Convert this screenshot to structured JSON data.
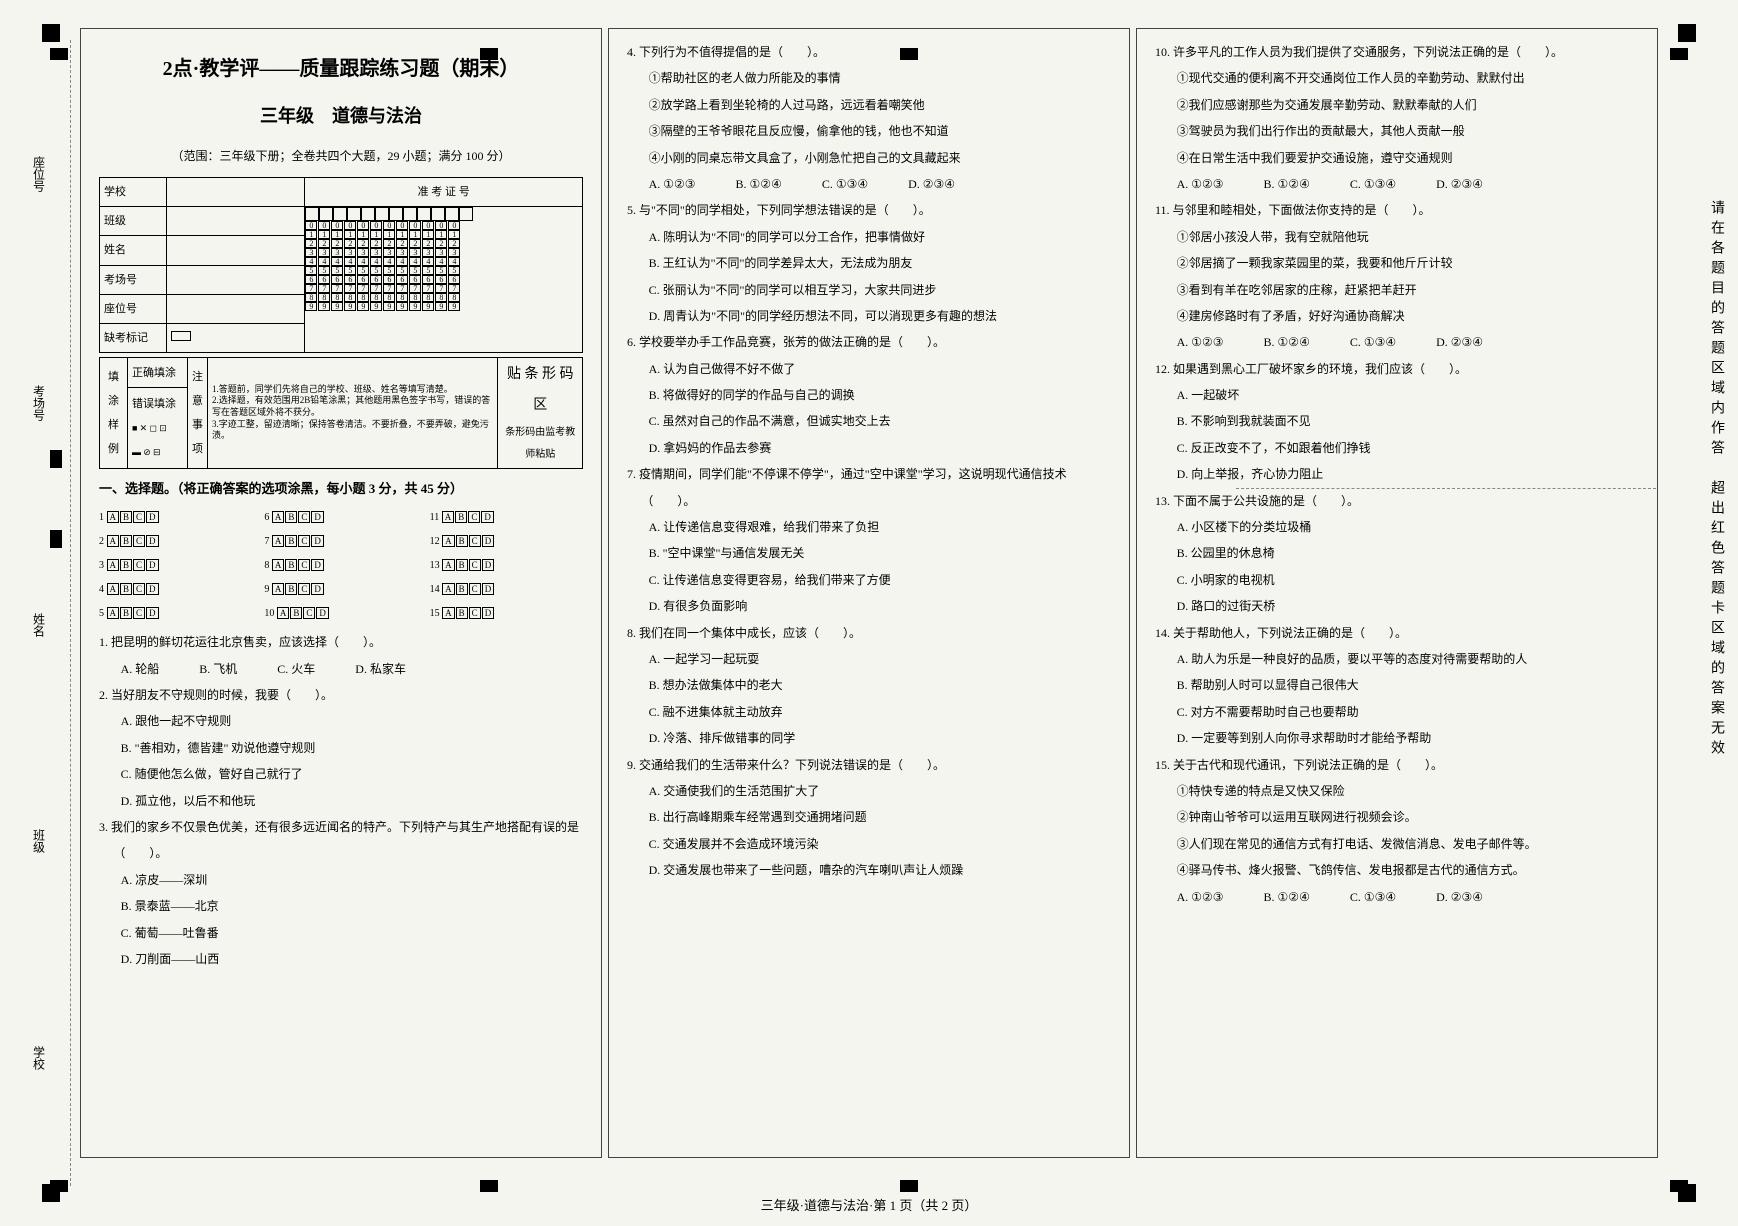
{
  "header": {
    "title": "2点·教学评——质量跟踪练习题（期末）",
    "subtitle": "三年级　道德与法治",
    "scope": "（范围：三年级下册；全卷共四个大题，29 小题；满分 100 分）"
  },
  "info_labels": {
    "school": "学校",
    "class": "班级",
    "name": "姓名",
    "room": "考场号",
    "seat": "座位号",
    "absent": "缺考标记",
    "exam_id_header": "准 考 证 号"
  },
  "fill_example": {
    "left_header": "填涂样例",
    "correct": "正确填涂",
    "wrong": "错误填涂",
    "notes_header": "注意事项",
    "note1": "1.答题前，同学们先将自己的学校、班级、姓名等填写清楚。",
    "note2": "2.选择题，有效范围用2B铅笔涂黑；其他题用黑色签字书写，错误的答写在答题区域外将不获分。",
    "note3": "3.字迹工整，留迹清晰；保持答卷清洁。不要折叠，不要弄破，避免污渍。",
    "barcode1": "贴 条 形 码 区",
    "barcode2": "条形码由监考教师粘贴"
  },
  "section1_title": "一、选择题。（将正确答案的选项涂黑，每小题 3 分，共 45 分）",
  "answer_grid": [
    [
      "1",
      "2",
      "3",
      "4",
      "5",
      "6",
      "7",
      "8",
      "9",
      "10",
      "11",
      "12",
      "13",
      "14",
      "15"
    ]
  ],
  "answer_opts": [
    "A",
    "B",
    "C",
    "D"
  ],
  "questions_col1": [
    {
      "num": "1.",
      "stem": "把昆明的鲜切花运往北京售卖，应该选择（　　）。",
      "opts": [
        "A. 轮船",
        "B. 飞机",
        "C. 火车",
        "D. 私家车"
      ],
      "inline": true
    },
    {
      "num": "2.",
      "stem": "当好朋友不守规则的时候，我要（　　）。",
      "opts": [
        "A. 跟他一起不守规则",
        "B. \"善相劝，德皆建\" 劝说他遵守规则",
        "C. 随便他怎么做，管好自己就行了",
        "D. 孤立他，以后不和他玩"
      ]
    },
    {
      "num": "3.",
      "stem": "我们的家乡不仅景色优美，还有很多远近闻名的特产。下列特产与其生产地搭配有误的是（　　）。",
      "opts": [
        "A. 凉皮——深圳",
        "B. 景泰蓝——北京",
        "C. 葡萄——吐鲁番",
        "D. 刀削面——山西"
      ]
    }
  ],
  "questions_col2": [
    {
      "num": "4.",
      "stem": "下列行为不值得提倡的是（　　）。",
      "pre_opts": [
        "①帮助社区的老人做力所能及的事情",
        "②放学路上看到坐轮椅的人过马路，远远看着嘲笑他",
        "③隔壁的王爷爷眼花且反应慢，偷拿他的钱，他也不知道",
        "④小刚的同桌忘带文具盒了，小刚急忙把自己的文具藏起来"
      ],
      "opts": [
        "A. ①②③",
        "B. ①②④",
        "C. ①③④",
        "D. ②③④"
      ],
      "inline": true
    },
    {
      "num": "5.",
      "stem": "与\"不同\"的同学相处，下列同学想法错误的是（　　）。",
      "opts": [
        "A. 陈明认为\"不同\"的同学可以分工合作，把事情做好",
        "B. 王红认为\"不同\"的同学差异太大，无法成为朋友",
        "C. 张丽认为\"不同\"的同学可以相互学习，大家共同进步",
        "D. 周青认为\"不同\"的同学经历想法不同，可以消现更多有趣的想法"
      ]
    },
    {
      "num": "6.",
      "stem": "学校要举办手工作品竞赛，张芳的做法正确的是（　　）。",
      "opts": [
        "A. 认为自己做得不好不做了",
        "B. 将做得好的同学的作品与自己的调换",
        "C. 虽然对自己的作品不满意，但诚实地交上去",
        "D. 拿妈妈的作品去参赛"
      ]
    },
    {
      "num": "7.",
      "stem": "疫情期间，同学们能\"不停课不停学\"，通过\"空中课堂\"学习，这说明现代通信技术（　　）。",
      "opts": [
        "A. 让传递信息变得艰难，给我们带来了负担",
        "B. \"空中课堂\"与通信发展无关",
        "C. 让传递信息变得更容易，给我们带来了方便",
        "D. 有很多负面影响"
      ]
    },
    {
      "num": "8.",
      "stem": "我们在同一个集体中成长，应该（　　）。",
      "opts": [
        "A. 一起学习一起玩耍",
        "B. 想办法做集体中的老大",
        "C. 融不进集体就主动放弃",
        "D. 冷落、排斥做错事的同学"
      ]
    },
    {
      "num": "9.",
      "stem": "交通给我们的生活带来什么？下列说法错误的是（　　）。",
      "opts": [
        "A. 交通使我们的生活范围扩大了",
        "B. 出行高峰期乘车经常遇到交通拥堵问题",
        "C. 交通发展并不会造成环境污染",
        "D. 交通发展也带来了一些问题，嘈杂的汽车喇叭声让人烦躁"
      ]
    }
  ],
  "questions_col3": [
    {
      "num": "10.",
      "stem": "许多平凡的工作人员为我们提供了交通服务，下列说法正确的是（　　）。",
      "pre_opts": [
        "①现代交通的便利离不开交通岗位工作人员的辛勤劳动、默默付出",
        "②我们应感谢那些为交通发展辛勤劳动、默默奉献的人们",
        "③驾驶员为我们出行作出的贡献最大，其他人贡献一般",
        "④在日常生活中我们要爱护交通设施，遵守交通规则"
      ],
      "opts": [
        "A. ①②③",
        "B. ①②④",
        "C. ①③④",
        "D. ②③④"
      ],
      "inline": true
    },
    {
      "num": "11.",
      "stem": "与邻里和睦相处，下面做法你支持的是（　　）。",
      "pre_opts": [
        "①邻居小孩没人带，我有空就陪他玩",
        "②邻居摘了一颗我家菜园里的菜，我要和他斤斤计较",
        "③看到有羊在吃邻居家的庄稼，赶紧把羊赶开",
        "④建房修路时有了矛盾，好好沟通协商解决"
      ],
      "opts": [
        "A. ①②③",
        "B. ①②④",
        "C. ①③④",
        "D. ②③④"
      ],
      "inline": true
    },
    {
      "num": "12.",
      "stem": "如果遇到黑心工厂破坏家乡的环境，我们应该（　　）。",
      "opts": [
        "A. 一起破坏",
        "B. 不影响到我就装面不见",
        "C. 反正改变不了，不如跟着他们挣钱",
        "D. 向上举报，齐心协力阻止"
      ]
    },
    {
      "num": "13.",
      "stem": "下面不属于公共设施的是（　　）。",
      "opts": [
        "A. 小区楼下的分类垃圾桶",
        "B. 公园里的休息椅",
        "C. 小明家的电视机",
        "D. 路口的过街天桥"
      ]
    },
    {
      "num": "14.",
      "stem": "关于帮助他人，下列说法正确的是（　　）。",
      "opts": [
        "A. 助人为乐是一种良好的品质，要以平等的态度对待需要帮助的人",
        "B. 帮助别人时可以显得自己很伟大",
        "C. 对方不需要帮助时自己也要帮助",
        "D. 一定要等到别人向你寻求帮助时才能给予帮助"
      ]
    },
    {
      "num": "15.",
      "stem": "关于古代和现代通讯，下列说法正确的是（　　）。",
      "pre_opts": [
        "①特快专递的特点是又快又保险",
        "②钟南山爷爷可以运用互联网进行视频会诊。",
        "③人们现在常见的通信方式有打电话、发微信消息、发电子邮件等。",
        "④驿马传书、烽火报警、飞鸽传信、发电报都是古代的通信方式。"
      ],
      "opts": [
        "A. ①②③",
        "B. ①②④",
        "C. ①③④",
        "D. ②③④"
      ],
      "inline": true
    }
  ],
  "margin": {
    "left_labels": [
      "座位号",
      "考场号",
      "姓名",
      "班级",
      "学校"
    ],
    "right_text": "请在各题目的答题区域内作答　超出红色答题卡区域的答案无效"
  },
  "footer": "三年级·道德与法治·第 1 页（共 2 页）"
}
